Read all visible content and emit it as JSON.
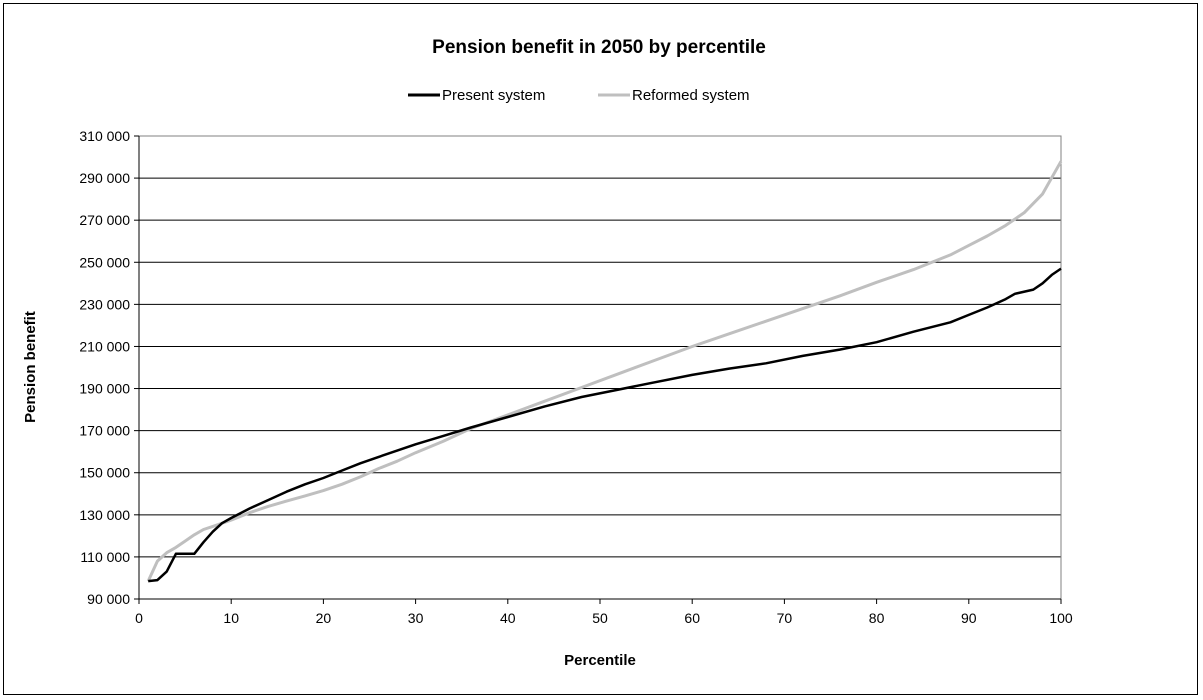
{
  "chart_data": {
    "type": "line",
    "title": "Pension benefit in 2050 by percentile",
    "xlabel": "Percentile",
    "ylabel": "Pension benefit",
    "xlim": [
      0,
      100
    ],
    "ylim": [
      90000,
      310000
    ],
    "x_ticks": [
      0,
      10,
      20,
      30,
      40,
      50,
      60,
      70,
      80,
      90,
      100
    ],
    "x_tick_labels": [
      "0",
      "10",
      "20",
      "30",
      "40",
      "50",
      "60",
      "70",
      "80",
      "90",
      "100"
    ],
    "y_ticks": [
      90000,
      110000,
      130000,
      150000,
      170000,
      190000,
      210000,
      230000,
      250000,
      270000,
      290000,
      310000
    ],
    "y_tick_labels": [
      "90 000",
      "110 000",
      "130 000",
      "150 000",
      "170 000",
      "190 000",
      "210 000",
      "230 000",
      "250 000",
      "270 000",
      "290 000",
      "310 000"
    ],
    "grid": "horizontal",
    "legend_position": "top",
    "series": [
      {
        "name": "Present system",
        "color": "#000000",
        "x": [
          1,
          2,
          3,
          4,
          5,
          6,
          7,
          8,
          9,
          10,
          12,
          14,
          16,
          18,
          20,
          22,
          24,
          26,
          28,
          30,
          33,
          36,
          40,
          44,
          48,
          52,
          56,
          60,
          64,
          68,
          72,
          76,
          80,
          84,
          88,
          90,
          92,
          94,
          95,
          97,
          98,
          99,
          100
        ],
        "values": [
          98500,
          99000,
          103000,
          111500,
          111500,
          111500,
          117000,
          122000,
          126000,
          128500,
          133000,
          137000,
          141000,
          144500,
          147500,
          151000,
          154500,
          157500,
          160500,
          163500,
          167500,
          171500,
          176500,
          181500,
          186000,
          189500,
          193000,
          196500,
          199500,
          202000,
          205500,
          208500,
          212000,
          217000,
          221500,
          225000,
          228500,
          232500,
          235000,
          237000,
          240000,
          244000,
          247000
        ]
      },
      {
        "name": "Reformed system",
        "color": "#bfbfbf",
        "x": [
          1,
          2,
          3,
          4,
          5,
          6,
          7,
          8,
          10,
          12,
          14,
          16,
          18,
          20,
          22,
          24,
          26,
          28,
          30,
          33,
          36,
          40,
          44,
          48,
          52,
          56,
          60,
          64,
          68,
          72,
          76,
          80,
          84,
          88,
          90,
          92,
          94,
          96,
          98,
          100
        ],
        "values": [
          98500,
          108000,
          112000,
          114500,
          117500,
          120500,
          123000,
          124500,
          127500,
          131000,
          134000,
          136500,
          139000,
          141500,
          144500,
          148000,
          152000,
          155500,
          159500,
          165000,
          171000,
          177500,
          184000,
          190500,
          197000,
          203500,
          210000,
          216000,
          222000,
          228000,
          234000,
          240500,
          246500,
          253500,
          258000,
          262500,
          267500,
          273500,
          282500,
          298000
        ]
      }
    ]
  }
}
